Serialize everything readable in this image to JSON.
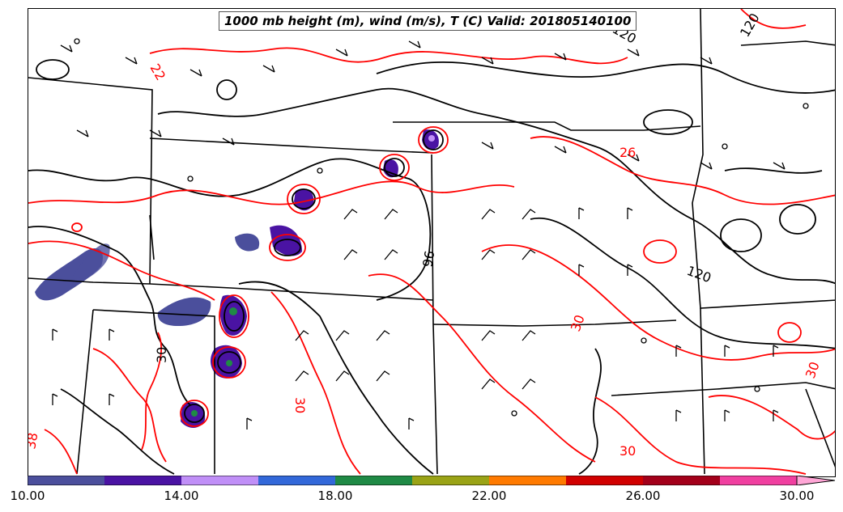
{
  "title": "1000 mb height (m), wind (m/s), T (C) Valid: 201805140100",
  "map": {
    "contour_colors": {
      "height": "#000000",
      "temperature": "#ff0000",
      "boundaries": "#000000"
    },
    "labels": {
      "t22": "22",
      "t26": "26",
      "t30a": "30",
      "t30b": "30",
      "t30c": "30",
      "t30d": "30",
      "t30e": "30",
      "t38": "38",
      "h120a": "120",
      "h120b": "120",
      "h120c": "120",
      "h96": "96"
    }
  },
  "colorbar": {
    "colors": [
      "#4b4f9c",
      "#4a13a3",
      "#c08ff7",
      "#3268d9",
      "#1f8a45",
      "#9aa316",
      "#ff7a00",
      "#d10000",
      "#a3001a",
      "#f03fa0",
      "#ffa6d6"
    ],
    "ticks": [
      "10.00",
      "14.00",
      "18.00",
      "22.00",
      "26.00",
      "30.00"
    ]
  }
}
